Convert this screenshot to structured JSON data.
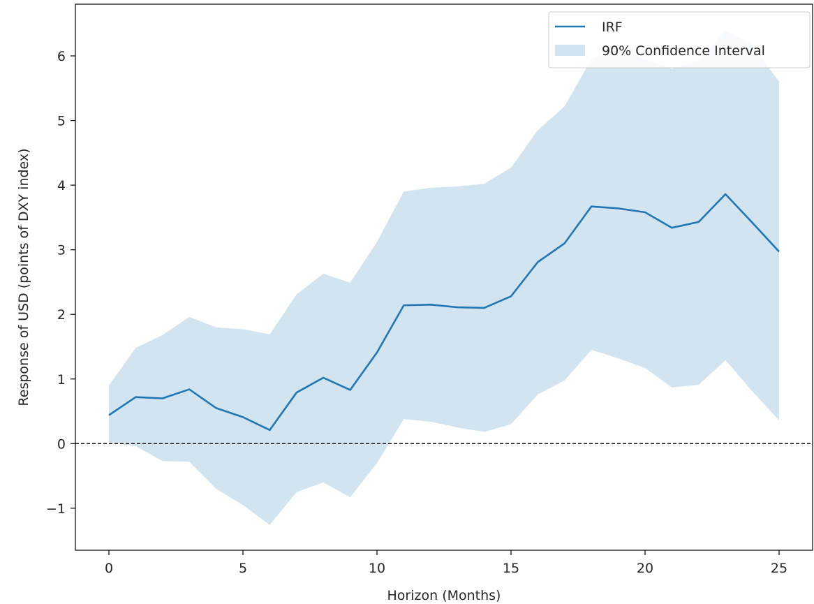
{
  "chart_data": {
    "type": "line",
    "xlabel": "Horizon (Months)",
    "ylabel": "Response of USD (points of DXY index)",
    "xlim": [
      -1.25,
      26.25
    ],
    "ylim": [
      -1.65,
      6.8
    ],
    "xticks": [
      0,
      5,
      10,
      15,
      20,
      25
    ],
    "yticks": [
      -1,
      0,
      1,
      2,
      3,
      4,
      5,
      6
    ],
    "ytick_labels": [
      "−1",
      "0",
      "1",
      "2",
      "3",
      "4",
      "5",
      "6"
    ],
    "grid": false,
    "legend_position": "top-right",
    "reference_line": {
      "y": 0,
      "style": "dashed",
      "color": "#000000"
    },
    "x": [
      0,
      1,
      2,
      3,
      4,
      5,
      6,
      7,
      8,
      9,
      10,
      11,
      12,
      13,
      14,
      15,
      16,
      17,
      18,
      19,
      20,
      21,
      22,
      23,
      24,
      25
    ],
    "series": [
      {
        "name": "IRF",
        "color": "#1f77b4",
        "values": [
          0.44,
          0.72,
          0.7,
          0.84,
          0.55,
          0.41,
          0.21,
          0.79,
          1.02,
          0.83,
          1.41,
          2.14,
          2.15,
          2.11,
          2.1,
          2.28,
          2.81,
          3.1,
          3.67,
          3.64,
          3.58,
          3.34,
          3.43,
          3.86,
          3.42,
          2.97
        ]
      }
    ],
    "band": {
      "name": "90% Confidence Interval",
      "color": "#1f77b4",
      "opacity": 0.2,
      "upper": [
        0.9,
        1.48,
        1.68,
        1.96,
        1.8,
        1.77,
        1.69,
        2.31,
        2.63,
        2.49,
        3.12,
        3.9,
        3.96,
        3.98,
        4.02,
        4.27,
        4.85,
        5.22,
        5.95,
        6.12,
        5.95,
        5.8,
        5.93,
        6.4,
        6.17,
        5.6
      ],
      "lower": [
        0.02,
        -0.04,
        -0.27,
        -0.28,
        -0.7,
        -0.95,
        -1.26,
        -0.75,
        -0.6,
        -0.83,
        -0.3,
        0.38,
        0.34,
        0.25,
        0.18,
        0.3,
        0.76,
        0.98,
        1.45,
        1.32,
        1.17,
        0.87,
        0.91,
        1.29,
        0.81,
        0.36
      ]
    }
  }
}
